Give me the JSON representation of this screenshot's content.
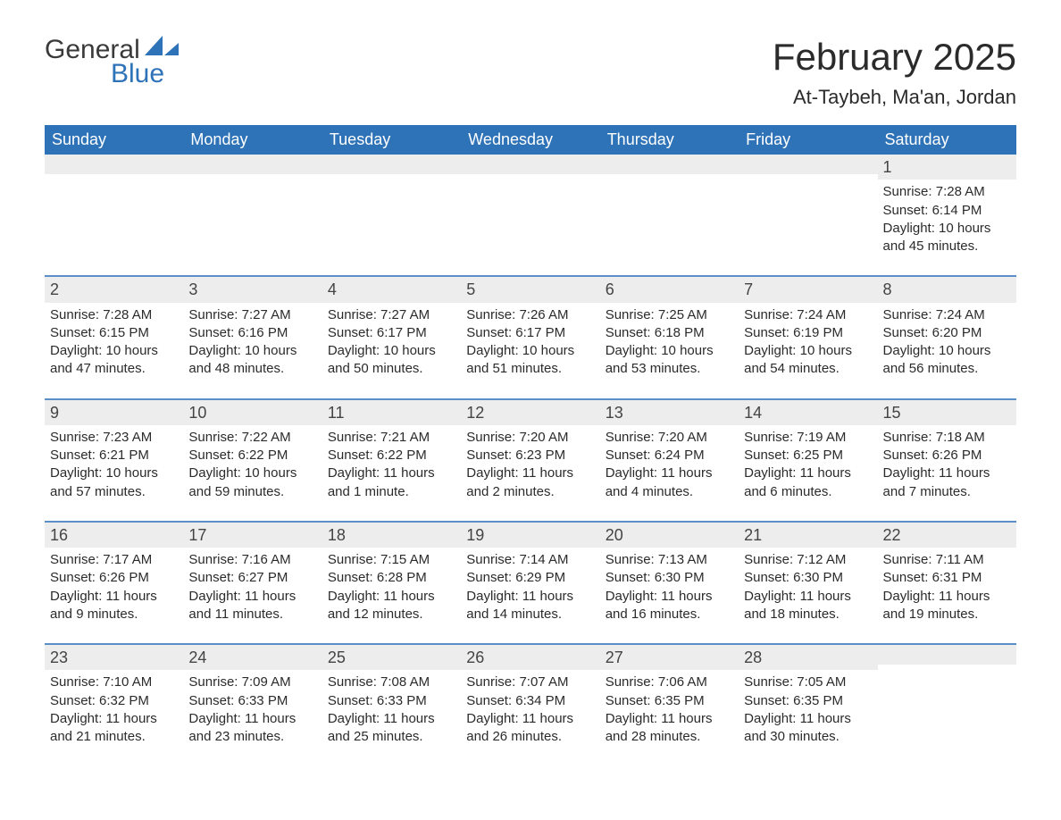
{
  "brand": {
    "part1": "General",
    "part2": "Blue"
  },
  "title": "February 2025",
  "location": "At-Taybeh, Ma'an, Jordan",
  "colors": {
    "header_bg": "#2e73b8",
    "header_text": "#ffffff",
    "daynum_bg": "#ededed",
    "row_divider": "#5b8fc7",
    "text": "#2b2b2b",
    "brand_blue": "#2e73b8",
    "background": "#ffffff"
  },
  "fonts": {
    "title_size_pt": 32,
    "location_size_pt": 17,
    "dayhead_size_pt": 14,
    "body_size_pt": 11
  },
  "day_names": [
    "Sunday",
    "Monday",
    "Tuesday",
    "Wednesday",
    "Thursday",
    "Friday",
    "Saturday"
  ],
  "weeks": [
    [
      null,
      null,
      null,
      null,
      null,
      null,
      {
        "n": "1",
        "sunrise": "Sunrise: 7:28 AM",
        "sunset": "Sunset: 6:14 PM",
        "daylight": "Daylight: 10 hours and 45 minutes."
      }
    ],
    [
      {
        "n": "2",
        "sunrise": "Sunrise: 7:28 AM",
        "sunset": "Sunset: 6:15 PM",
        "daylight": "Daylight: 10 hours and 47 minutes."
      },
      {
        "n": "3",
        "sunrise": "Sunrise: 7:27 AM",
        "sunset": "Sunset: 6:16 PM",
        "daylight": "Daylight: 10 hours and 48 minutes."
      },
      {
        "n": "4",
        "sunrise": "Sunrise: 7:27 AM",
        "sunset": "Sunset: 6:17 PM",
        "daylight": "Daylight: 10 hours and 50 minutes."
      },
      {
        "n": "5",
        "sunrise": "Sunrise: 7:26 AM",
        "sunset": "Sunset: 6:17 PM",
        "daylight": "Daylight: 10 hours and 51 minutes."
      },
      {
        "n": "6",
        "sunrise": "Sunrise: 7:25 AM",
        "sunset": "Sunset: 6:18 PM",
        "daylight": "Daylight: 10 hours and 53 minutes."
      },
      {
        "n": "7",
        "sunrise": "Sunrise: 7:24 AM",
        "sunset": "Sunset: 6:19 PM",
        "daylight": "Daylight: 10 hours and 54 minutes."
      },
      {
        "n": "8",
        "sunrise": "Sunrise: 7:24 AM",
        "sunset": "Sunset: 6:20 PM",
        "daylight": "Daylight: 10 hours and 56 minutes."
      }
    ],
    [
      {
        "n": "9",
        "sunrise": "Sunrise: 7:23 AM",
        "sunset": "Sunset: 6:21 PM",
        "daylight": "Daylight: 10 hours and 57 minutes."
      },
      {
        "n": "10",
        "sunrise": "Sunrise: 7:22 AM",
        "sunset": "Sunset: 6:22 PM",
        "daylight": "Daylight: 10 hours and 59 minutes."
      },
      {
        "n": "11",
        "sunrise": "Sunrise: 7:21 AM",
        "sunset": "Sunset: 6:22 PM",
        "daylight": "Daylight: 11 hours and 1 minute."
      },
      {
        "n": "12",
        "sunrise": "Sunrise: 7:20 AM",
        "sunset": "Sunset: 6:23 PM",
        "daylight": "Daylight: 11 hours and 2 minutes."
      },
      {
        "n": "13",
        "sunrise": "Sunrise: 7:20 AM",
        "sunset": "Sunset: 6:24 PM",
        "daylight": "Daylight: 11 hours and 4 minutes."
      },
      {
        "n": "14",
        "sunrise": "Sunrise: 7:19 AM",
        "sunset": "Sunset: 6:25 PM",
        "daylight": "Daylight: 11 hours and 6 minutes."
      },
      {
        "n": "15",
        "sunrise": "Sunrise: 7:18 AM",
        "sunset": "Sunset: 6:26 PM",
        "daylight": "Daylight: 11 hours and 7 minutes."
      }
    ],
    [
      {
        "n": "16",
        "sunrise": "Sunrise: 7:17 AM",
        "sunset": "Sunset: 6:26 PM",
        "daylight": "Daylight: 11 hours and 9 minutes."
      },
      {
        "n": "17",
        "sunrise": "Sunrise: 7:16 AM",
        "sunset": "Sunset: 6:27 PM",
        "daylight": "Daylight: 11 hours and 11 minutes."
      },
      {
        "n": "18",
        "sunrise": "Sunrise: 7:15 AM",
        "sunset": "Sunset: 6:28 PM",
        "daylight": "Daylight: 11 hours and 12 minutes."
      },
      {
        "n": "19",
        "sunrise": "Sunrise: 7:14 AM",
        "sunset": "Sunset: 6:29 PM",
        "daylight": "Daylight: 11 hours and 14 minutes."
      },
      {
        "n": "20",
        "sunrise": "Sunrise: 7:13 AM",
        "sunset": "Sunset: 6:30 PM",
        "daylight": "Daylight: 11 hours and 16 minutes."
      },
      {
        "n": "21",
        "sunrise": "Sunrise: 7:12 AM",
        "sunset": "Sunset: 6:30 PM",
        "daylight": "Daylight: 11 hours and 18 minutes."
      },
      {
        "n": "22",
        "sunrise": "Sunrise: 7:11 AM",
        "sunset": "Sunset: 6:31 PM",
        "daylight": "Daylight: 11 hours and 19 minutes."
      }
    ],
    [
      {
        "n": "23",
        "sunrise": "Sunrise: 7:10 AM",
        "sunset": "Sunset: 6:32 PM",
        "daylight": "Daylight: 11 hours and 21 minutes."
      },
      {
        "n": "24",
        "sunrise": "Sunrise: 7:09 AM",
        "sunset": "Sunset: 6:33 PM",
        "daylight": "Daylight: 11 hours and 23 minutes."
      },
      {
        "n": "25",
        "sunrise": "Sunrise: 7:08 AM",
        "sunset": "Sunset: 6:33 PM",
        "daylight": "Daylight: 11 hours and 25 minutes."
      },
      {
        "n": "26",
        "sunrise": "Sunrise: 7:07 AM",
        "sunset": "Sunset: 6:34 PM",
        "daylight": "Daylight: 11 hours and 26 minutes."
      },
      {
        "n": "27",
        "sunrise": "Sunrise: 7:06 AM",
        "sunset": "Sunset: 6:35 PM",
        "daylight": "Daylight: 11 hours and 28 minutes."
      },
      {
        "n": "28",
        "sunrise": "Sunrise: 7:05 AM",
        "sunset": "Sunset: 6:35 PM",
        "daylight": "Daylight: 11 hours and 30 minutes."
      },
      null
    ]
  ]
}
